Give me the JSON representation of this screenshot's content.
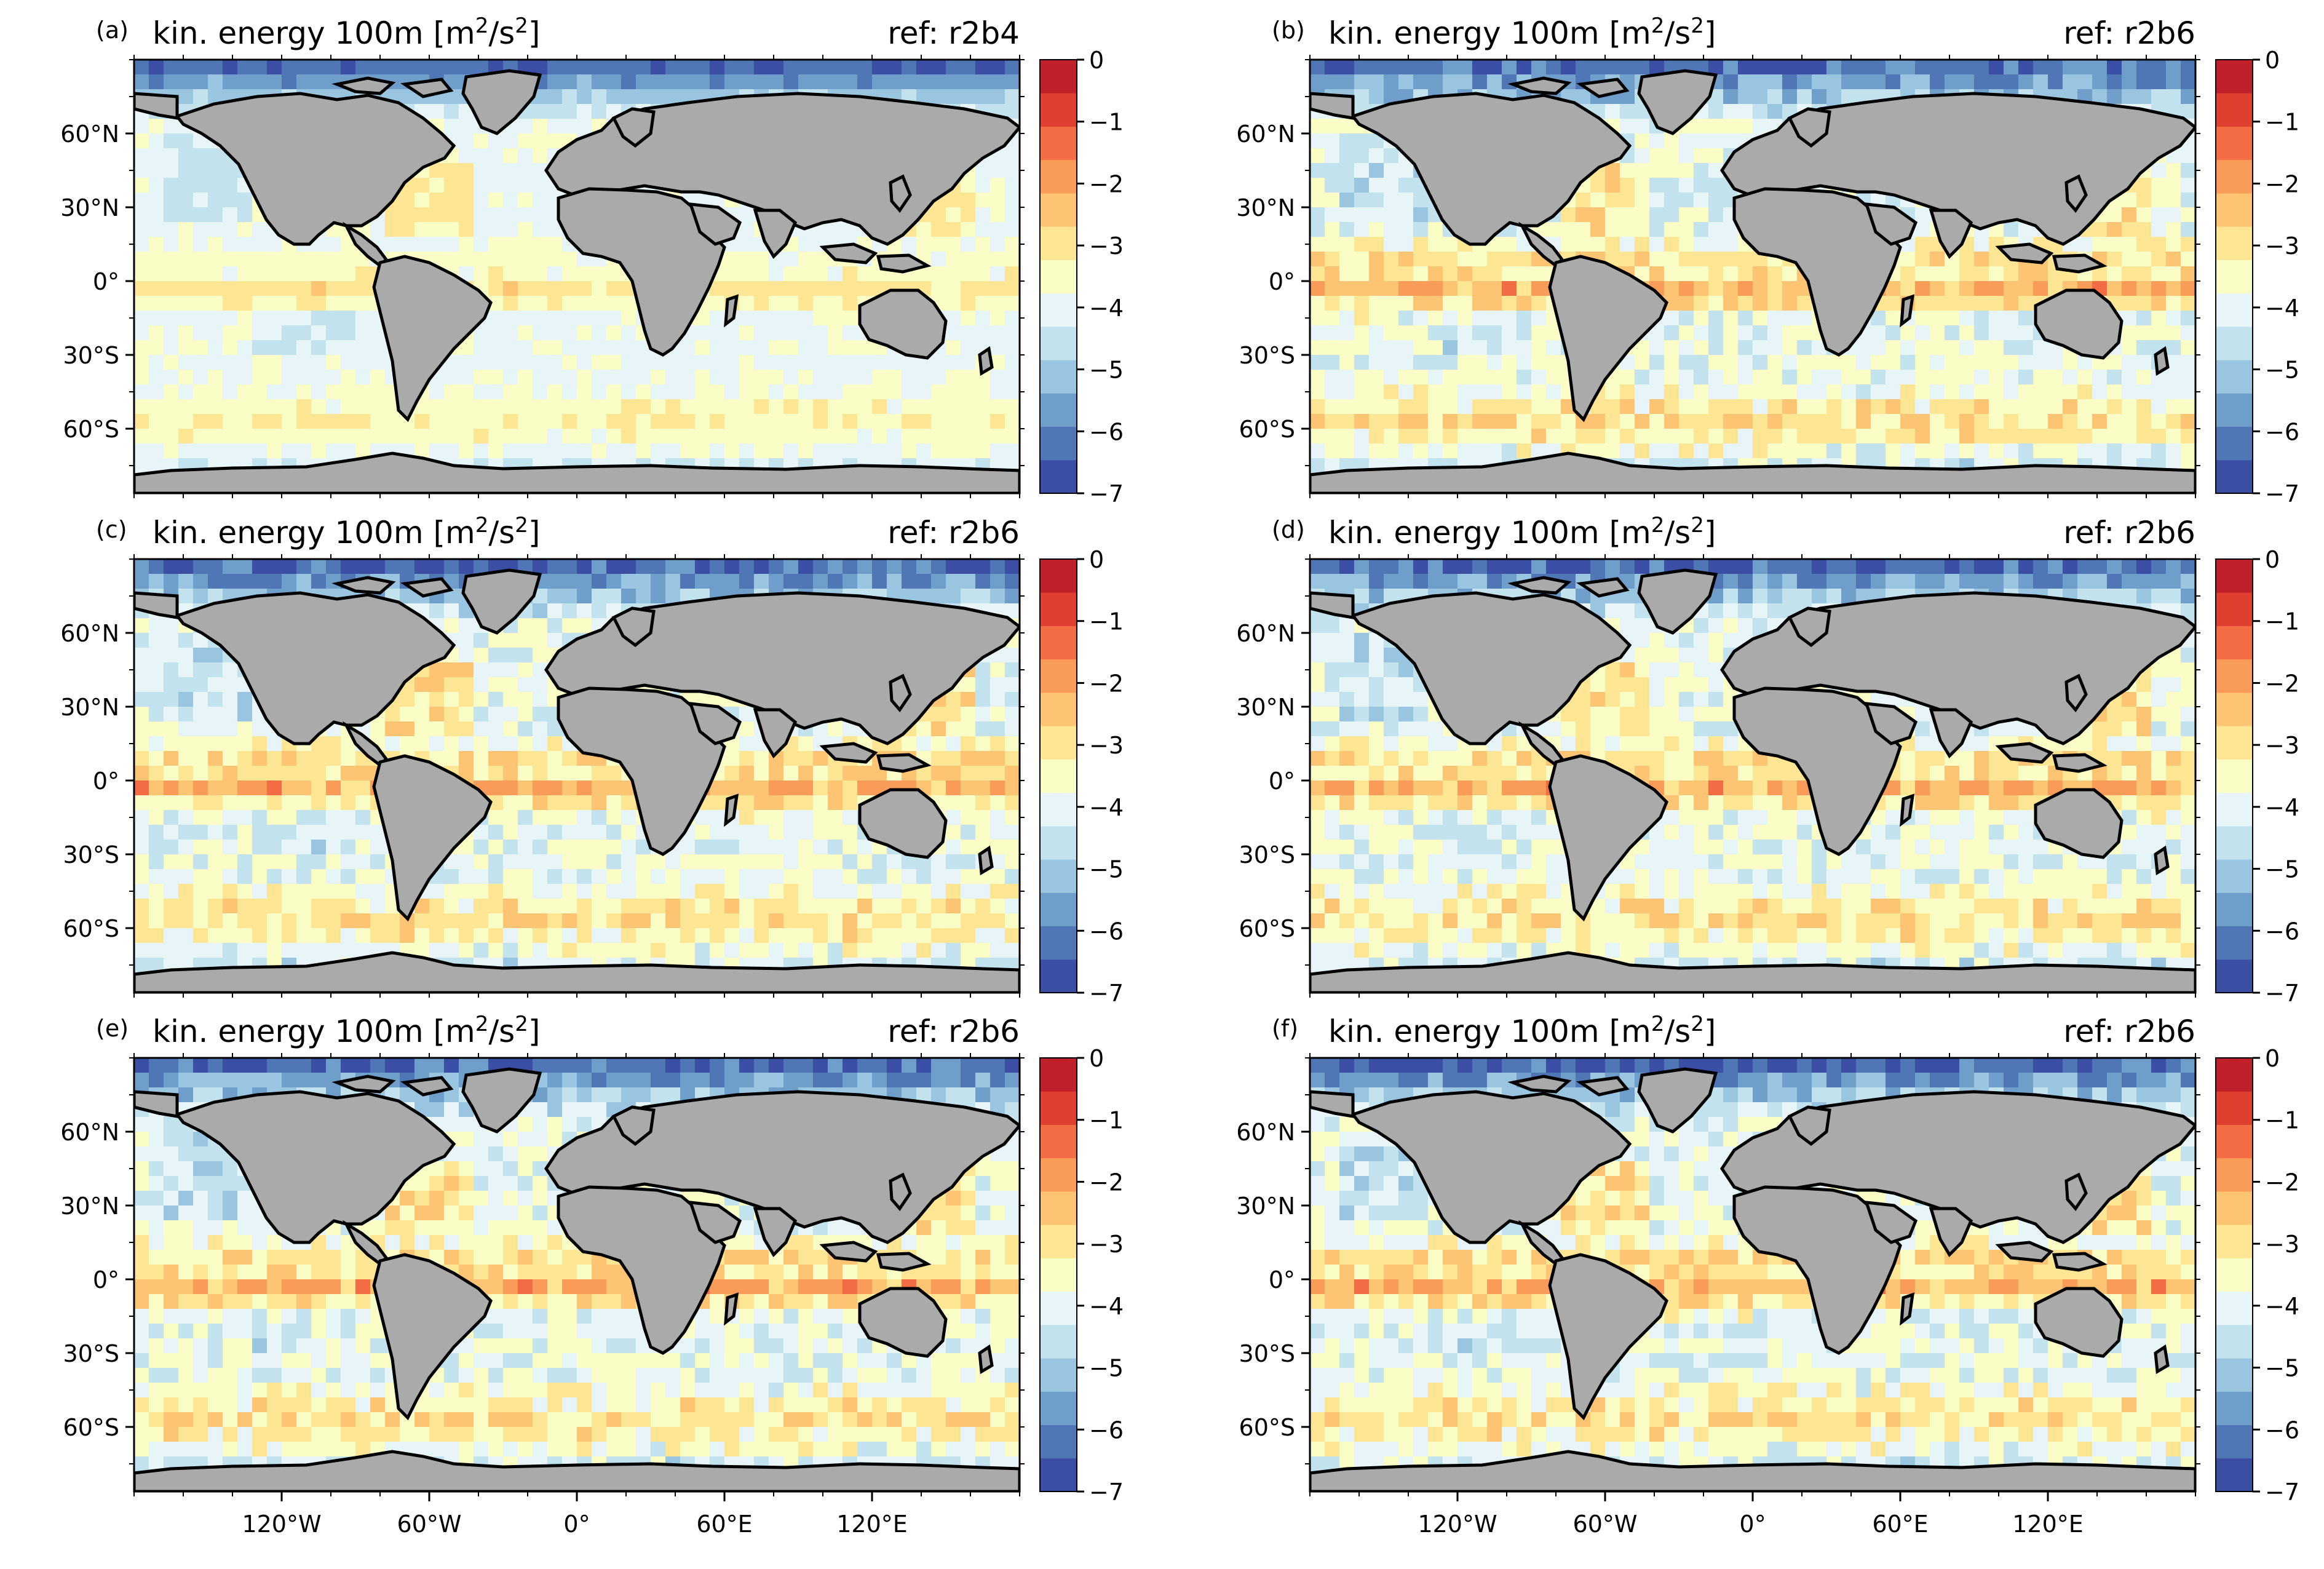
{
  "colors": {
    "land": "#aaaaaa",
    "coast": "#000000",
    "ocean_base": "#fefec0",
    "colorbar": [
      "#3a4ea3",
      "#4f76b5",
      "#6f9ecb",
      "#9ac5e0",
      "#c2e2ee",
      "#e8f5f8",
      "#fbfdc7",
      "#fee695",
      "#fdc474",
      "#f99c5a",
      "#f36c43",
      "#df3f2f",
      "#c0202a"
    ]
  },
  "layout_labels": {
    "lat_ticks": [
      "60°N",
      "30°N",
      "0°",
      "30°S",
      "60°S"
    ],
    "lon_ticks": [
      "120°W",
      "60°W",
      "0°",
      "60°E",
      "120°E"
    ],
    "colorbar_ticks": [
      "0",
      "−1",
      "−2",
      "−3",
      "−4",
      "−5",
      "−6",
      "−7"
    ]
  },
  "panels": [
    {
      "letter": "(a)",
      "title_main": "kin. energy 100m [m",
      "sup1": "2",
      "mid": "/s",
      "sup2": "2",
      "title_end": "]",
      "ref": "ref: r2b4"
    },
    {
      "letter": "(b)",
      "title_main": "kin. energy 100m [m",
      "sup1": "2",
      "mid": "/s",
      "sup2": "2",
      "title_end": "]",
      "ref": "ref: r2b6"
    },
    {
      "letter": "(c)",
      "title_main": "kin. energy 100m [m",
      "sup1": "2",
      "mid": "/s",
      "sup2": "2",
      "title_end": "]",
      "ref": "ref: r2b6"
    },
    {
      "letter": "(d)",
      "title_main": "kin. energy 100m [m",
      "sup1": "2",
      "mid": "/s",
      "sup2": "2",
      "title_end": "]",
      "ref": "ref: r2b6"
    },
    {
      "letter": "(e)",
      "title_main": "kin. energy 100m [m",
      "sup1": "2",
      "mid": "/s",
      "sup2": "2",
      "title_end": "]",
      "ref": "ref: r2b6"
    },
    {
      "letter": "(f)",
      "title_main": "kin. energy 100m [m",
      "sup1": "2",
      "mid": "/s",
      "sup2": "2",
      "title_end": "]",
      "ref": "ref: r2b6"
    }
  ],
  "chart_data": {
    "type": "heatmap",
    "colorbar_range": [
      -7,
      0
    ],
    "colorbar_levels": 13,
    "x_axis": "longitude",
    "y_axis": "latitude",
    "panels": [
      "(a)",
      "(b)",
      "(c)",
      "(d)",
      "(e)",
      "(f)"
    ]
  }
}
